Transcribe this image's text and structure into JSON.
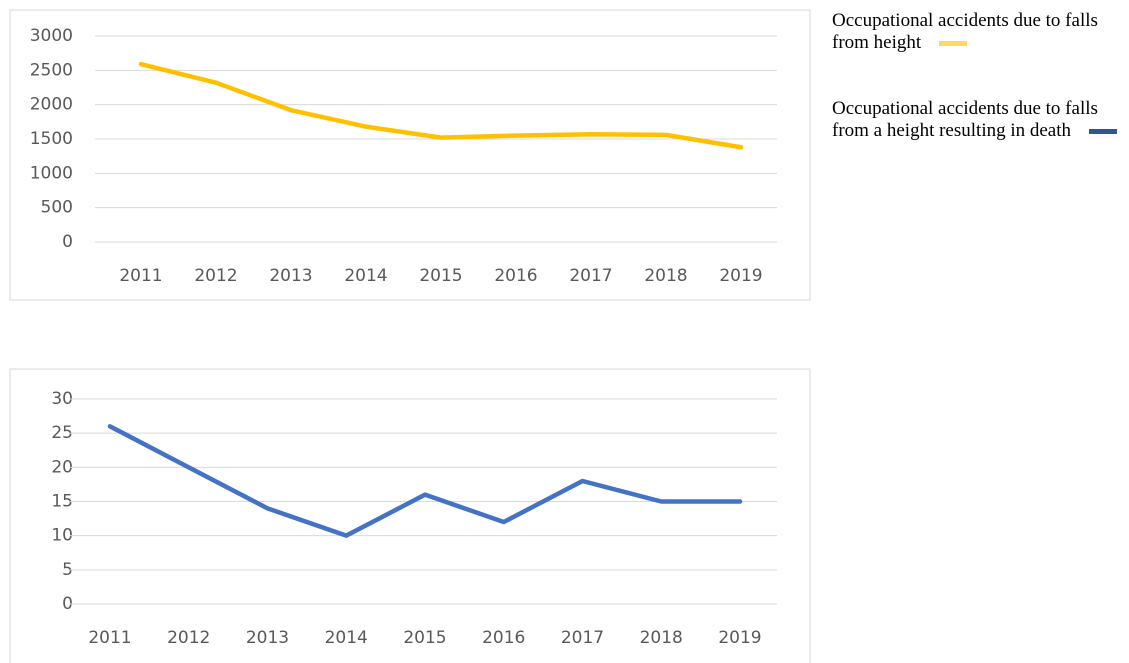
{
  "chart_data": [
    {
      "type": "line",
      "categories": [
        "2011",
        "2012",
        "2013",
        "2014",
        "2015",
        "2016",
        "2017",
        "2018",
        "2019"
      ],
      "series": [
        {
          "name": "Occupational accidents due to falls from height",
          "color": "#ffc000",
          "legend_color": "#ffd966",
          "values": [
            2590,
            2320,
            1920,
            1680,
            1520,
            1550,
            1570,
            1560,
            1380
          ]
        }
      ],
      "ylim": [
        0,
        3000
      ],
      "yticks": [
        0,
        500,
        1000,
        1500,
        2000,
        2500,
        3000
      ],
      "grid": true
    },
    {
      "type": "line",
      "categories": [
        "2011",
        "2012",
        "2013",
        "2014",
        "2015",
        "2016",
        "2017",
        "2018",
        "2019"
      ],
      "series": [
        {
          "name": "Occupational accidents due to falls from a height resulting in death",
          "color": "#4472c4",
          "legend_color": "#2f5597",
          "values": [
            26,
            20,
            14,
            10,
            16,
            12,
            18,
            15,
            15
          ]
        }
      ],
      "ylim": [
        0,
        30
      ],
      "yticks": [
        0,
        5,
        10,
        15,
        20,
        25,
        30
      ],
      "grid": true
    }
  ]
}
